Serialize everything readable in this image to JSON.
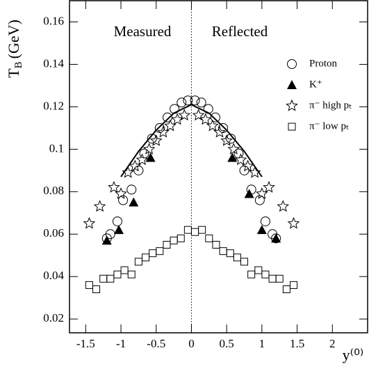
{
  "chart_data": {
    "type": "scatter",
    "y_label": "T",
    "y_label_sub": "B",
    "y_label_unit": "(GeV)",
    "x_label": "y⁽⁰⁾",
    "annotations": [
      "Measured",
      "Reflected"
    ],
    "xlim": [
      -1.73,
      2.5
    ],
    "ylim": [
      0.0135,
      0.17
    ],
    "xticks": [
      -1.5,
      -1,
      -0.5,
      0,
      0.5,
      1,
      1.5,
      2
    ],
    "yticks": [
      0.02,
      0.04,
      0.06,
      0.08,
      0.1,
      0.12,
      0.14,
      0.16
    ],
    "vline": 0,
    "series": [
      {
        "name": "Proton",
        "marker": "circle",
        "color": "#000",
        "x": [
          -1.2,
          -1.15,
          -1.05,
          -0.97,
          -0.85,
          -0.75,
          -0.67,
          -0.56,
          -0.45,
          -0.34,
          -0.24,
          -0.14,
          -0.05,
          0.05,
          0.14,
          0.24,
          0.34,
          0.45,
          0.56,
          0.67,
          0.75,
          0.85,
          0.97,
          1.05,
          1.15,
          1.2
        ],
        "values": [
          0.058,
          0.06,
          0.066,
          0.076,
          0.081,
          0.09,
          0.098,
          0.105,
          0.11,
          0.115,
          0.119,
          0.122,
          0.123,
          0.123,
          0.122,
          0.119,
          0.115,
          0.11,
          0.105,
          0.098,
          0.09,
          0.081,
          0.076,
          0.066,
          0.06,
          0.058
        ]
      },
      {
        "name": "K⁺",
        "marker": "triangle",
        "color": "#000",
        "x": [
          -1.2,
          -1.03,
          -0.82,
          -0.58,
          0.58,
          0.82,
          1.0,
          1.2
        ],
        "values": [
          0.057,
          0.062,
          0.075,
          0.096,
          0.096,
          0.079,
          0.062,
          0.058
        ]
      },
      {
        "name": "π⁻ high pₜ",
        "marker": "star",
        "color": "#000",
        "x": [
          -1.45,
          -1.3,
          -1.1,
          -1.0,
          -0.9,
          -0.8,
          -0.7,
          -0.6,
          -0.5,
          -0.4,
          -0.3,
          -0.2,
          -0.1,
          0.1,
          0.2,
          0.3,
          0.4,
          0.5,
          0.6,
          0.7,
          0.8,
          0.9,
          1.0,
          1.1,
          1.3,
          1.45
        ],
        "values": [
          0.065,
          0.073,
          0.082,
          0.079,
          0.089,
          0.092,
          0.095,
          0.1,
          0.104,
          0.108,
          0.111,
          0.114,
          0.116,
          0.116,
          0.114,
          0.111,
          0.108,
          0.104,
          0.1,
          0.095,
          0.092,
          0.089,
          0.079,
          0.082,
          0.073,
          0.065
        ]
      },
      {
        "name": "π⁻ low pₜ",
        "marker": "square",
        "color": "#000",
        "x": [
          -1.45,
          -1.35,
          -1.25,
          -1.15,
          -1.05,
          -0.95,
          -0.85,
          -0.75,
          -0.65,
          -0.55,
          -0.45,
          -0.35,
          -0.25,
          -0.15,
          -0.05,
          0.05,
          0.15,
          0.25,
          0.35,
          0.45,
          0.55,
          0.65,
          0.75,
          0.85,
          0.95,
          1.05,
          1.15,
          1.25,
          1.35,
          1.45
        ],
        "values": [
          0.036,
          0.034,
          0.039,
          0.039,
          0.041,
          0.043,
          0.041,
          0.047,
          0.049,
          0.051,
          0.052,
          0.055,
          0.057,
          0.058,
          0.062,
          0.061,
          0.062,
          0.058,
          0.055,
          0.052,
          0.051,
          0.049,
          0.047,
          0.041,
          0.043,
          0.041,
          0.039,
          0.039,
          0.034,
          0.036
        ]
      },
      {
        "marker": "line",
        "color": "#000",
        "x": [
          -1,
          -0.75,
          -0.5,
          -0.25,
          0,
          0.25,
          0.5,
          0.75,
          1
        ],
        "values": [
          0.087,
          0.099,
          0.109,
          0.117,
          0.121,
          0.117,
          0.109,
          0.099,
          0.087
        ]
      }
    ]
  }
}
